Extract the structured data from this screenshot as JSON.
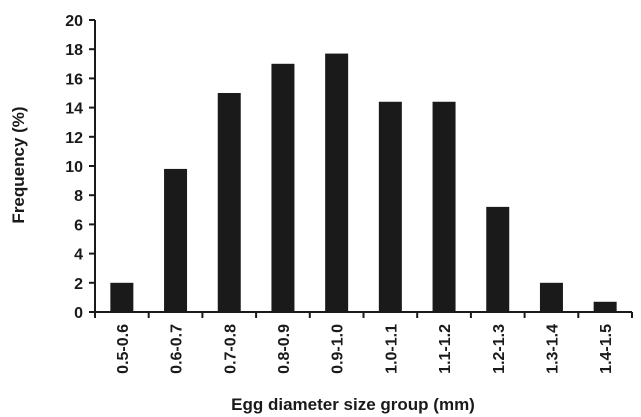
{
  "chart_data": {
    "type": "bar",
    "title": "",
    "xlabel": "Egg diameter size group (mm)",
    "ylabel": "Frequency (%)",
    "categories": [
      "0.5-0.6",
      "0.6-0.7",
      "0.7-0.8",
      "0.8-0.9",
      "0.9-1.0",
      "1.0-1.1",
      "1.1-1.2",
      "1.2-1.3",
      "1.3-1.4",
      "1.4-1.5"
    ],
    "values": [
      2.0,
      9.8,
      15.0,
      17.0,
      17.7,
      14.4,
      14.4,
      7.2,
      2.0,
      0.7
    ],
    "ylim": [
      0,
      20
    ],
    "yticks": [
      0,
      2,
      4,
      6,
      8,
      10,
      12,
      14,
      16,
      18,
      20
    ],
    "grid": false,
    "colors": {
      "bar": "#1a1a1a",
      "axis": "#1a1a1a",
      "background": "#ffffff"
    }
  }
}
